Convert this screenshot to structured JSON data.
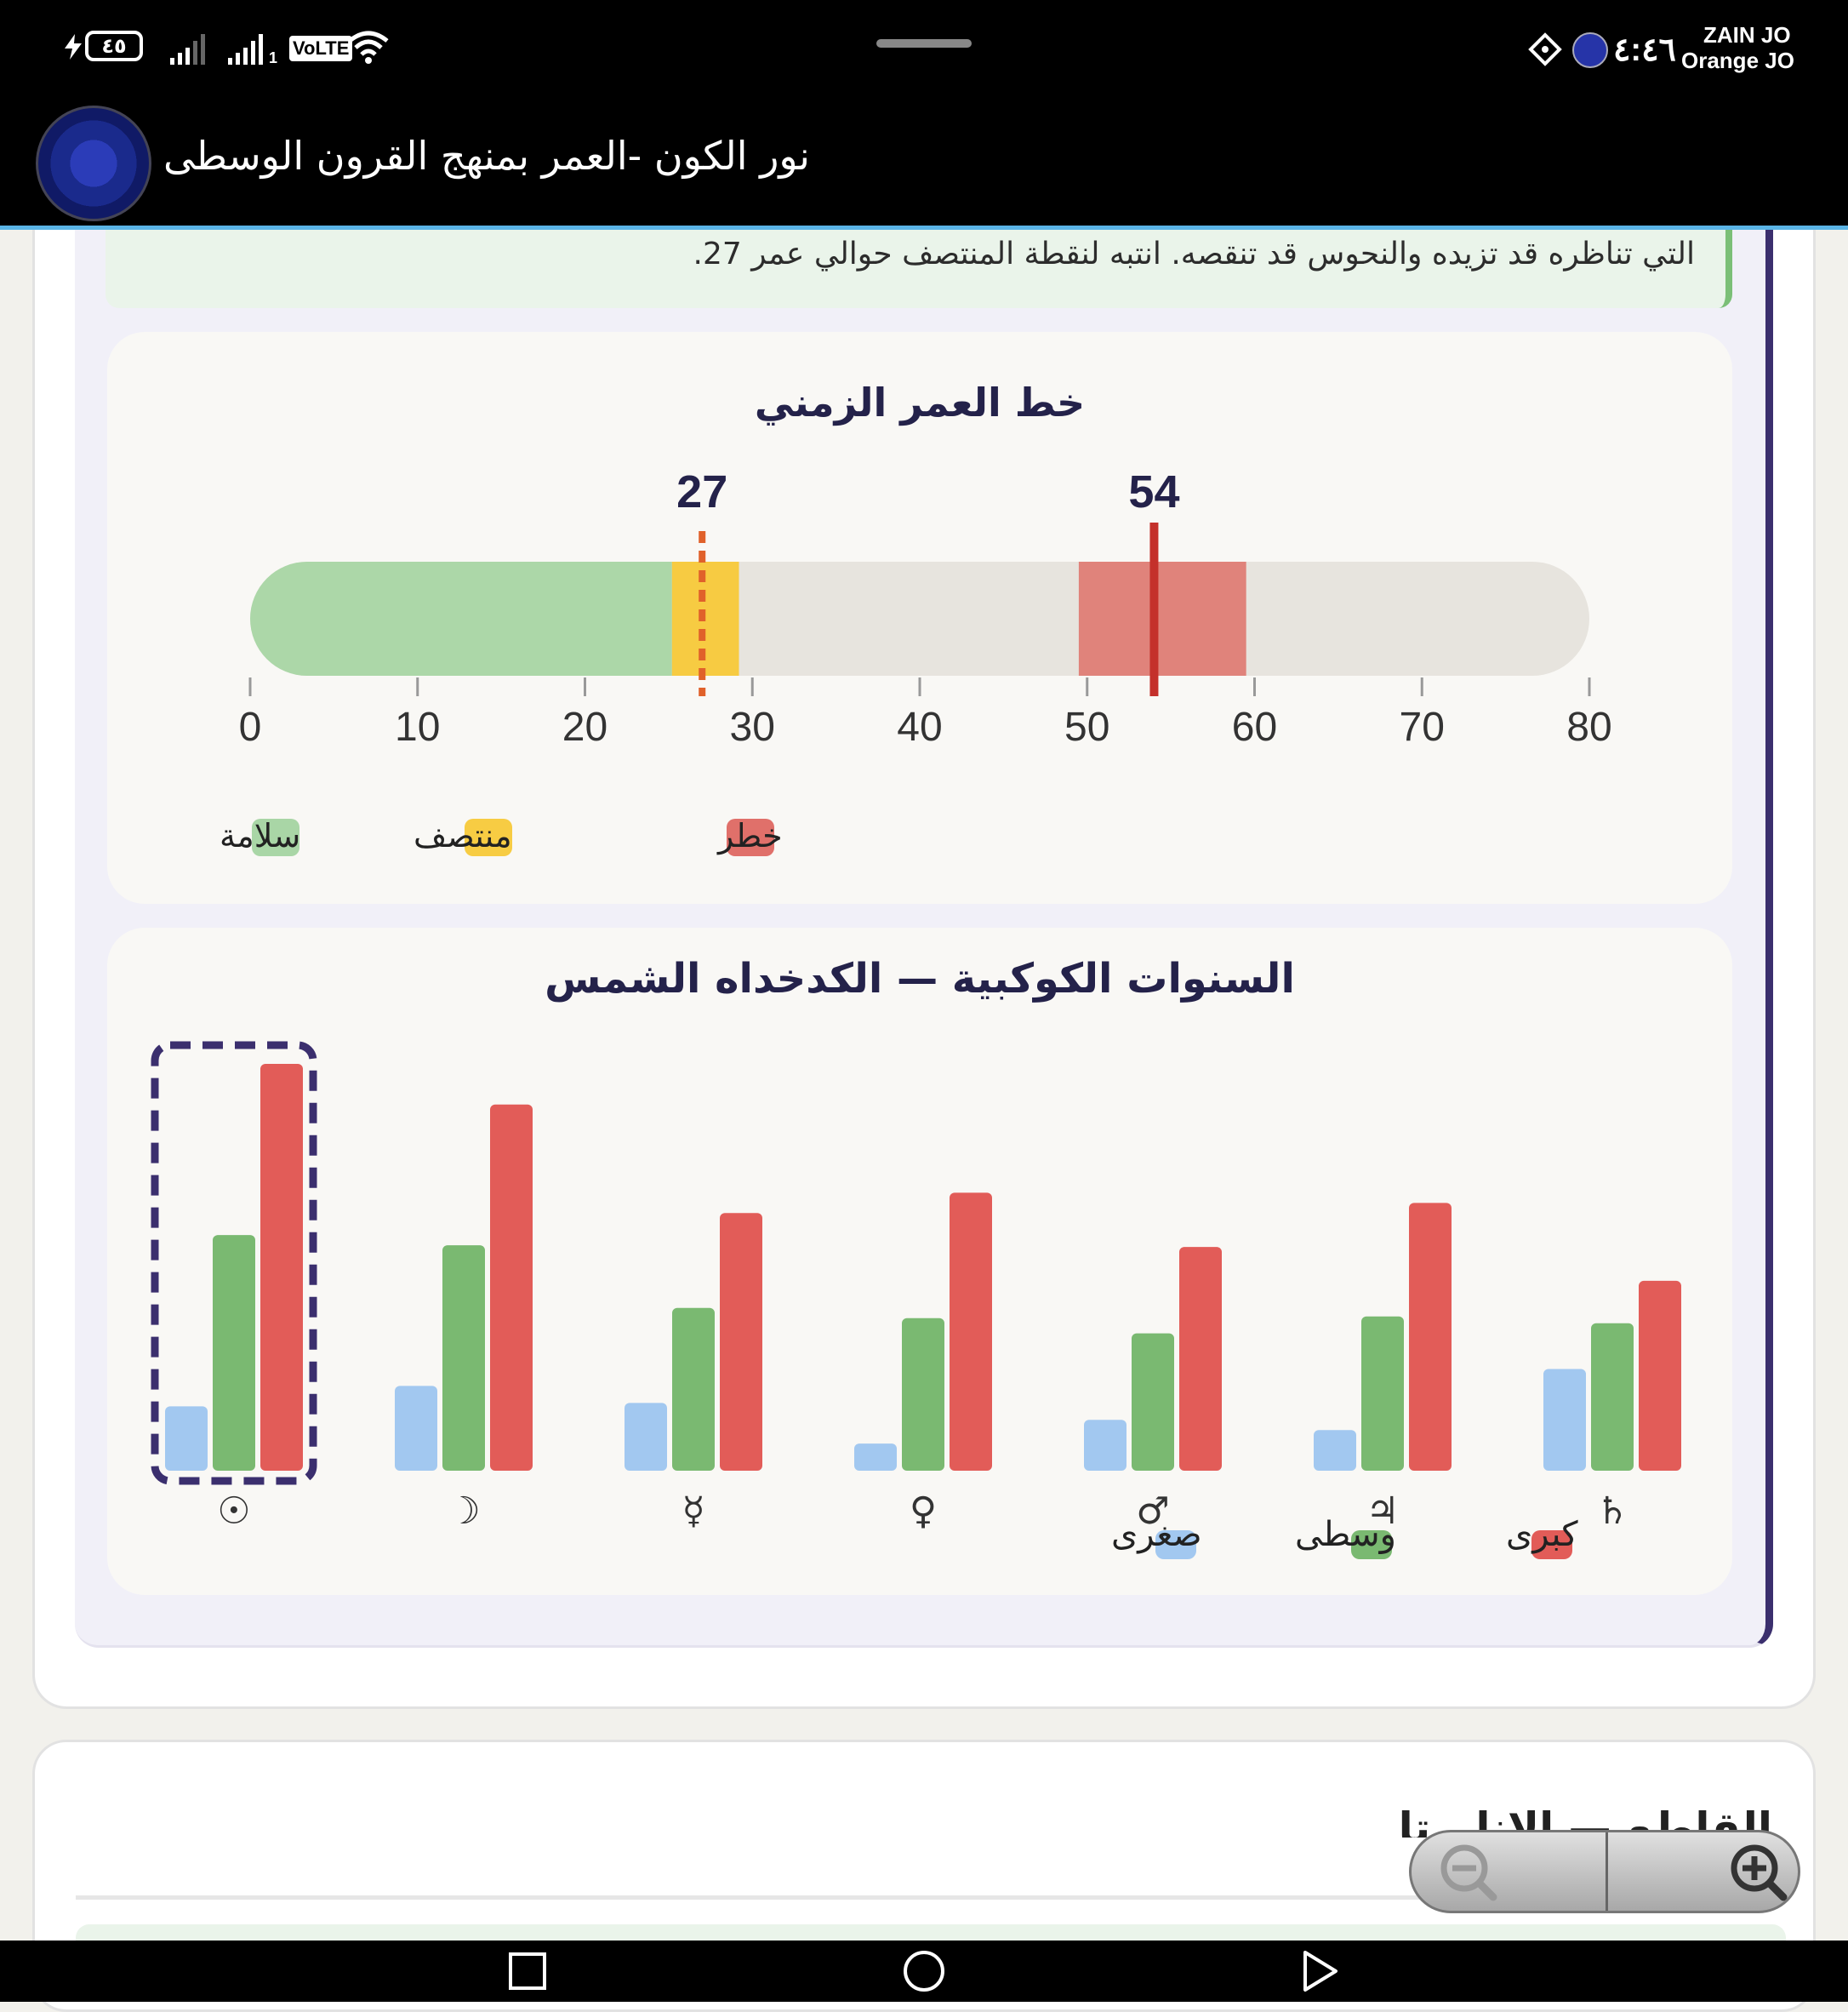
{
  "status_bar": {
    "battery": "٤٥",
    "volte": "VoLTE",
    "sim_slot": "1",
    "time": "٤:٤٦",
    "carrier_1": "ZAIN JO",
    "carrier_2": "Orange JO"
  },
  "app_bar": {
    "title": "نور الكون -العمر بمنهج القرون الوسطى",
    "logo_icon": "zodiac-wheel-logo"
  },
  "note": {
    "text": "التي تناظره قد تزيده والنحوس قد تنقصه. انتبه لنقطة المنتصف حوالي عمر 27."
  },
  "timeline": {
    "title": "خط العمر الزمني",
    "midpoint_label": "27",
    "danger_label": "54",
    "legend": [
      {
        "label": "سلامة",
        "color": "#a9d6a6"
      },
      {
        "label": "منتصف",
        "color": "#f7cc43"
      },
      {
        "label": "خطر",
        "color": "#e0706a"
      }
    ],
    "chart_data": {
      "type": "bar",
      "axis_min": 0,
      "axis_max": 80,
      "ticks": [
        "0",
        "10",
        "20",
        "30",
        "40",
        "50",
        "60",
        "70",
        "80"
      ],
      "safe_range": [
        0,
        25.2
      ],
      "midpoint_range": [
        25.2,
        29.2
      ],
      "midpoint_marker": 27,
      "danger_range": [
        49.5,
        59.5
      ],
      "danger_marker": 54,
      "colors": {
        "track": "#e7e4de",
        "safe": "#acd7a8",
        "mid": "#f7cb42",
        "mid_marker": "#e0612a",
        "danger": "#e0837b",
        "danger_marker": "#c4302b"
      }
    }
  },
  "planetary_years": {
    "title": "السنوات الكوكبية — الكدخداه الشمس",
    "legend": [
      {
        "label": "صغرى",
        "color": "#a2c8f0"
      },
      {
        "label": "وسطى",
        "color": "#7ab971"
      },
      {
        "label": "كبرى",
        "color": "#e25c58"
      }
    ],
    "chart_data": {
      "type": "bar",
      "categories": [
        "☉",
        "☽",
        "☿",
        "♀",
        "♂",
        "♃",
        "♄"
      ],
      "highlighted_category": "☉",
      "ylim": [
        0,
        120
      ],
      "series": [
        {
          "name": "صغرى",
          "color": "#a2c8f0",
          "values": [
            19,
            25,
            20,
            8,
            15,
            12,
            30
          ]
        },
        {
          "name": "وسطى",
          "color": "#7ab971",
          "values": [
            69.5,
            66.5,
            48,
            45,
            40.5,
            45.5,
            43.5
          ]
        },
        {
          "name": "كبرى",
          "color": "#e25c58",
          "values": [
            120,
            108,
            76,
            82,
            66,
            79,
            56
          ]
        }
      ]
    }
  },
  "next_section": {
    "heading": "القاطع — الانليرتا"
  },
  "zoom_control": {
    "zoom_out_icon": "zoom-out-icon",
    "zoom_in_icon": "zoom-in-icon"
  },
  "nav_bar": {
    "recents_icon": "square-recents-icon",
    "home_icon": "circle-home-icon",
    "back_icon": "triangle-back-icon"
  }
}
